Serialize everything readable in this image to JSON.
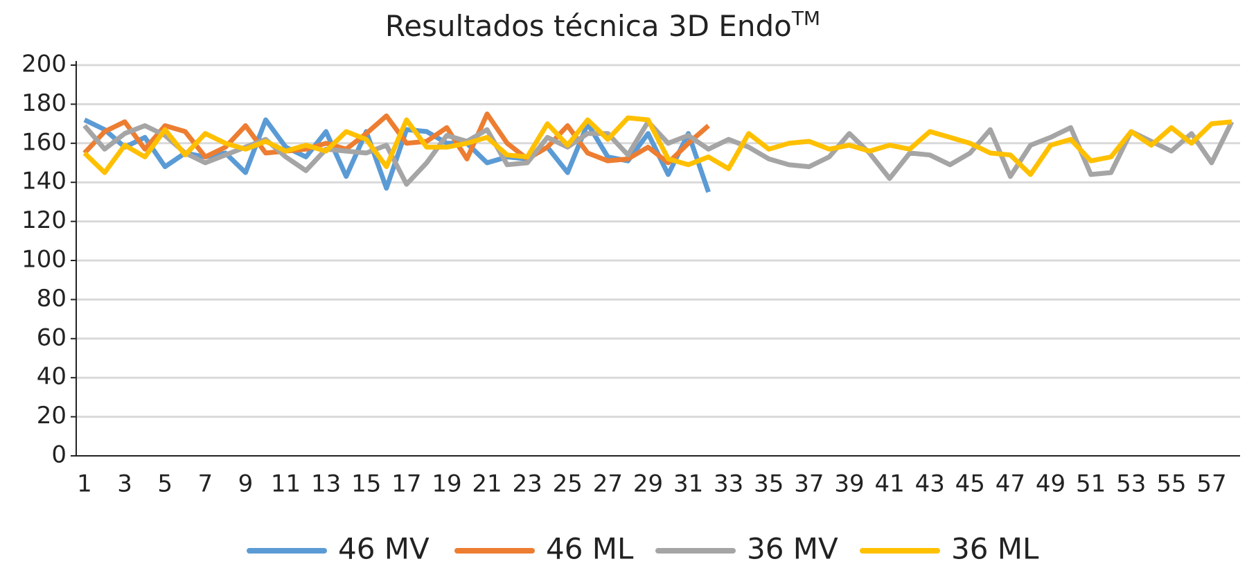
{
  "chart_data": {
    "type": "line",
    "title": "Resultados técnica 3D Endo",
    "title_superscript": "TM",
    "categories": [
      1,
      null,
      3,
      null,
      5,
      null,
      7,
      null,
      9,
      null,
      11,
      null,
      13,
      null,
      15,
      null,
      17,
      null,
      19,
      null,
      21,
      null,
      23,
      null,
      25,
      null,
      27,
      null,
      29,
      null,
      31,
      null,
      33,
      null,
      35,
      null,
      37,
      null,
      39,
      null,
      41,
      null,
      43,
      null,
      45,
      null,
      47,
      null,
      49,
      null,
      51,
      null,
      53,
      null,
      55,
      null,
      57,
      null
    ],
    "ylim": [
      0,
      200
    ],
    "yticks": [
      0,
      20,
      40,
      60,
      80,
      100,
      120,
      140,
      160,
      180,
      200
    ],
    "grid": true,
    "legend": "bottom",
    "series": [
      {
        "name": "46 MV",
        "color": "#5b9bd5",
        "values": [
          172,
          167,
          158,
          163,
          148,
          155,
          153,
          155,
          145,
          172,
          158,
          153,
          166,
          143,
          166,
          137,
          167,
          166,
          160,
          160,
          150,
          153,
          152,
          158,
          145,
          170,
          153,
          151,
          165,
          144,
          165,
          135,
          null,
          null,
          null,
          null,
          null,
          null,
          null,
          null,
          null,
          null,
          null,
          null,
          null,
          null,
          null,
          null,
          null,
          null,
          null,
          null,
          null,
          null,
          null,
          null,
          null,
          null
        ]
      },
      {
        "name": "46 ML",
        "color": "#ed7d31",
        "values": [
          155,
          166,
          171,
          157,
          169,
          166,
          153,
          158,
          169,
          155,
          156,
          157,
          160,
          157,
          165,
          174,
          160,
          161,
          168,
          152,
          175,
          160,
          152,
          158,
          169,
          155,
          151,
          152,
          158,
          150,
          160,
          169,
          null,
          null,
          null,
          null,
          null,
          null,
          null,
          null,
          null,
          null,
          null,
          null,
          null,
          null,
          null,
          null,
          null,
          null,
          null,
          null,
          null,
          null,
          null,
          null,
          null,
          null
        ]
      },
      {
        "name": "36 MV",
        "color": "#a5a5a5",
        "values": [
          169,
          157,
          165,
          169,
          164,
          155,
          150,
          154,
          158,
          162,
          153,
          146,
          157,
          156,
          155,
          159,
          139,
          150,
          164,
          161,
          167,
          149,
          150,
          163,
          158,
          165,
          165,
          154,
          171,
          160,
          164,
          157,
          162,
          158,
          152,
          149,
          148,
          153,
          165,
          155,
          142,
          155,
          154,
          149,
          155,
          167,
          143,
          159,
          163,
          168,
          144,
          145,
          166,
          161,
          156,
          165,
          150,
          171
        ]
      },
      {
        "name": "36 ML",
        "color": "#ffc000",
        "values": [
          155,
          145,
          159,
          153,
          167,
          154,
          165,
          160,
          157,
          161,
          156,
          159,
          156,
          166,
          162,
          148,
          172,
          158,
          158,
          160,
          163,
          154,
          153,
          170,
          159,
          172,
          162,
          173,
          172,
          152,
          149,
          153,
          147,
          165,
          157,
          160,
          161,
          157,
          159,
          156,
          159,
          157,
          166,
          163,
          160,
          155,
          154,
          144,
          159,
          162,
          151,
          153,
          166,
          159,
          168,
          160,
          170,
          171
        ]
      }
    ]
  }
}
